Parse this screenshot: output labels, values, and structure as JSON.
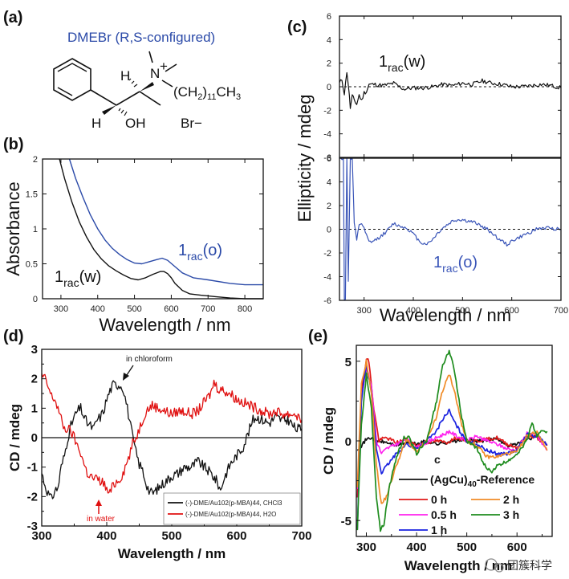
{
  "figure": {
    "panel_labels": [
      "(a)",
      "(b)",
      "(c)",
      "(d)",
      "(e)"
    ],
    "watermark": "团簇科学"
  },
  "structure": {
    "title": "DMEBr (R,S-configured)",
    "title_color": "#2b4aa8",
    "labels": {
      "h_top": "H",
      "n_plus": "N",
      "plus": "+",
      "chain": "(CH2)11CH3",
      "h_bottom": "H",
      "oh": "OH",
      "br": "Br−"
    }
  },
  "chart_data": [
    {
      "panel": "b",
      "type": "line",
      "title": "",
      "xlabel": "Wavelength  /  nm",
      "ylabel": "Absorbance",
      "xlim": [
        250,
        850
      ],
      "ylim": [
        0,
        2
      ],
      "xticks": [
        300,
        400,
        500,
        600,
        700,
        800
      ],
      "yticks": [
        0,
        0.5,
        1,
        1.5,
        2
      ],
      "ytick_labels": [
        "0",
        "0.5",
        "1",
        "1.5",
        "2"
      ],
      "grid": false,
      "series": [
        {
          "name": "1rac(w)",
          "color": "#111111",
          "x": [
            296,
            310,
            330,
            350,
            370,
            390,
            410,
            430,
            450,
            470,
            490,
            510,
            530,
            550,
            570,
            580,
            590,
            600,
            610,
            630,
            650,
            680,
            720,
            760,
            800,
            850
          ],
          "y": [
            2.0,
            1.72,
            1.38,
            1.1,
            0.88,
            0.7,
            0.57,
            0.47,
            0.4,
            0.34,
            0.29,
            0.27,
            0.3,
            0.35,
            0.39,
            0.39,
            0.36,
            0.3,
            0.22,
            0.12,
            0.07,
            0.05,
            0.03,
            0.01,
            0.0,
            0.0
          ]
        },
        {
          "name": "1rac(o)",
          "color": "#2b4aa8",
          "x": [
            323,
            340,
            360,
            380,
            400,
            420,
            440,
            460,
            480,
            500,
            520,
            540,
            560,
            575,
            590,
            610,
            630,
            660,
            700,
            760,
            800,
            850
          ],
          "y": [
            2.0,
            1.72,
            1.45,
            1.2,
            1.0,
            0.84,
            0.72,
            0.63,
            0.56,
            0.51,
            0.5,
            0.53,
            0.56,
            0.58,
            0.55,
            0.46,
            0.37,
            0.3,
            0.27,
            0.22,
            0.2,
            0.2
          ]
        }
      ],
      "annotations": [
        {
          "text_main": "1",
          "text_sub": "rac",
          "text_tail": "(w)",
          "color": "#111111"
        },
        {
          "text_main": "1",
          "text_sub": "rac",
          "text_tail": "(o)",
          "color": "#2b4aa8"
        }
      ]
    },
    {
      "panel": "c",
      "type": "line",
      "xlabel": "Wavelength  /  nm",
      "ylabel": "Ellipticity  /  mdeg",
      "xlim": [
        250,
        700
      ],
      "ylim": [
        -6,
        6
      ],
      "xticks": [
        300,
        400,
        500,
        600,
        700
      ],
      "yticks": [
        -6,
        -4,
        -2,
        0,
        2,
        4,
        6
      ],
      "grid": false,
      "subplots": [
        {
          "name": "top",
          "series": [
            {
              "name": "1rac(w)",
              "color": "#111111",
              "x": [
                250,
                255,
                260,
                265,
                268,
                272,
                276,
                280,
                285,
                290,
                295,
                300,
                305,
                310,
                320,
                340,
                360,
                380,
                400,
                420,
                440,
                460,
                480,
                500,
                520,
                540,
                560,
                580,
                600,
                620,
                640,
                660,
                680,
                700
              ],
              "y": [
                0.3,
                0.6,
                -0.6,
                1.3,
                0.2,
                -1.8,
                -0.8,
                -1.1,
                -1.5,
                -0.7,
                -1.2,
                -0.5,
                -0.4,
                0.2,
                0.2,
                0.1,
                0.3,
                -0.2,
                -0.1,
                -0.1,
                0.0,
                0.2,
                0.1,
                0.3,
                0.2,
                0.5,
                0.3,
                0.2,
                0.0,
                0.0,
                0.1,
                0.2,
                0.1,
                -0.1
              ]
            }
          ],
          "annotation": {
            "text_main": "1",
            "text_sub": "rac",
            "text_tail": "(w)",
            "color": "#111111"
          }
        },
        {
          "name": "bottom",
          "series": [
            {
              "name": "1rac(o)",
              "color": "#3a55b8",
              "x": [
                250,
                258,
                260,
                262,
                265,
                268,
                272,
                276,
                280,
                285,
                290,
                295,
                300,
                310,
                320,
                330,
                340,
                350,
                360,
                370,
                380,
                390,
                400,
                410,
                420,
                430,
                440,
                450,
                460,
                470,
                480,
                490,
                500,
                510,
                520,
                530,
                540,
                550,
                560,
                570,
                580,
                590,
                600,
                610,
                620,
                630,
                640,
                650,
                660,
                680,
                700
              ],
              "y": [
                6,
                6,
                -6,
                -6,
                6,
                -4.3,
                6,
                6,
                0.5,
                -1.0,
                0.4,
                0.5,
                0.0,
                -1.1,
                -1.0,
                -0.7,
                -0.4,
                0.0,
                0.5,
                0.3,
                0.2,
                0.0,
                -0.4,
                -0.9,
                -1.2,
                -1.2,
                -0.8,
                -0.3,
                0.1,
                0.4,
                0.7,
                0.8,
                0.8,
                0.7,
                0.6,
                0.5,
                0.2,
                0.0,
                -0.3,
                -0.7,
                -1.0,
                -1.3,
                -1.0,
                -0.8,
                -0.6,
                -0.4,
                -0.2,
                0.0,
                0.1,
                0.1,
                0.0
              ]
            }
          ],
          "annotation": {
            "text_main": "1",
            "text_sub": "rac",
            "text_tail": "(o)",
            "color": "#3a55b8"
          }
        }
      ]
    },
    {
      "panel": "d",
      "type": "line",
      "xlabel": "Wavelength / nm",
      "ylabel": "CD / mdeg",
      "xlim": [
        300,
        700
      ],
      "ylim": [
        -3,
        3
      ],
      "xticks": [
        300,
        400,
        500,
        600,
        700
      ],
      "yticks": [
        -3,
        -2,
        -1,
        0,
        1,
        2,
        3
      ],
      "grid": false,
      "legend_position": "bottom-right",
      "series": [
        {
          "name": "(-)-DME/Au102(p-MBA)44, CHCl3",
          "color": "#111111",
          "x": [
            300,
            305,
            310,
            315,
            320,
            325,
            330,
            335,
            340,
            345,
            350,
            355,
            360,
            365,
            370,
            375,
            380,
            385,
            390,
            395,
            400,
            405,
            410,
            415,
            420,
            425,
            430,
            435,
            440,
            445,
            450,
            455,
            460,
            465,
            470,
            480,
            490,
            500,
            510,
            520,
            530,
            540,
            550,
            560,
            570,
            575,
            580,
            590,
            600,
            610,
            615,
            620,
            625,
            630,
            640,
            650,
            660,
            670,
            680,
            690,
            700
          ],
          "y": [
            -1.2,
            -1.6,
            -1.9,
            -2.1,
            -1.8,
            -1.7,
            -1.0,
            -0.6,
            0.0,
            0.4,
            0.7,
            0.9,
            1.0,
            0.7,
            0.5,
            0.4,
            0.3,
            0.6,
            0.7,
            0.9,
            1.3,
            1.6,
            1.8,
            1.8,
            1.8,
            1.7,
            1.2,
            0.6,
            0.0,
            -0.5,
            -0.9,
            -1.1,
            -1.5,
            -1.8,
            -1.9,
            -1.7,
            -1.5,
            -1.3,
            -1.2,
            -1.0,
            -1.0,
            -0.8,
            -1.0,
            -1.2,
            -1.5,
            -1.8,
            -1.4,
            -0.9,
            -0.6,
            -0.3,
            0.0,
            0.3,
            0.6,
            0.7,
            0.6,
            0.5,
            0.7,
            0.6,
            0.6,
            0.3,
            0.3
          ]
        },
        {
          "name": "(-)-DME/Au102(p-MBA)44, H2O",
          "color": "#e01010",
          "x": [
            300,
            305,
            310,
            315,
            320,
            325,
            330,
            335,
            340,
            345,
            350,
            355,
            360,
            365,
            370,
            375,
            380,
            385,
            390,
            395,
            400,
            405,
            410,
            415,
            420,
            425,
            430,
            435,
            440,
            445,
            450,
            455,
            460,
            470,
            480,
            490,
            500,
            510,
            520,
            530,
            540,
            550,
            560,
            565,
            570,
            580,
            590,
            600,
            610,
            620,
            630,
            640,
            650,
            660,
            670,
            680,
            690,
            700
          ],
          "y": [
            2.1,
            2.0,
            1.7,
            1.4,
            1.3,
            1.0,
            0.6,
            0.3,
            0.3,
            0.2,
            0.0,
            -0.3,
            -0.5,
            -0.9,
            -1.2,
            -1.3,
            -1.4,
            -1.4,
            -1.5,
            -1.5,
            -1.8,
            -1.9,
            -1.6,
            -1.5,
            -1.4,
            -1.2,
            -0.9,
            -0.6,
            -0.2,
            0.0,
            0.3,
            0.6,
            0.9,
            1.1,
            1.0,
            0.9,
            0.8,
            0.9,
            0.9,
            0.8,
            0.9,
            1.2,
            1.5,
            1.9,
            1.7,
            1.6,
            1.5,
            1.3,
            1.2,
            1.1,
            1.0,
            0.9,
            0.8,
            0.9,
            0.8,
            0.8,
            0.8,
            0.6
          ]
        }
      ],
      "annotations": [
        {
          "text": "in chloroform",
          "color": "#111111"
        },
        {
          "text": "in water",
          "color": "#e01010"
        }
      ]
    },
    {
      "panel": "e",
      "type": "line",
      "xlabel": "Wavelength / nm",
      "ylabel": "CD / mdeg",
      "xlim": [
        280,
        670
      ],
      "ylim": [
        -6,
        6
      ],
      "xticks": [
        300,
        400,
        500,
        600
      ],
      "xtick_labels": [
        "300",
        "400",
        "500",
        "600"
      ],
      "yticks": [
        -5,
        0,
        5
      ],
      "grid": false,
      "legend_position": "bottom-center",
      "legend_title": "c",
      "series": [
        {
          "name": "(AgCu)40-Reference",
          "color": "#111111",
          "x": [
            282,
            290,
            300,
            310,
            320,
            340,
            360,
            380,
            400,
            420,
            440,
            460,
            480,
            500,
            520,
            540,
            560,
            580,
            600,
            620,
            640,
            660
          ],
          "y": [
            -0.5,
            -0.3,
            0.1,
            0.2,
            0.0,
            -0.1,
            -0.3,
            -0.1,
            -0.2,
            0.0,
            -0.2,
            -0.1,
            0.0,
            0.1,
            0.0,
            0.0,
            0.2,
            -0.3,
            -0.2,
            0.1,
            0.3,
            -0.2
          ]
        },
        {
          "name": "0 h",
          "color": "#e01818",
          "x": [
            282,
            290,
            300,
            305,
            315,
            325,
            330,
            340,
            360,
            380,
            400,
            420,
            440,
            460,
            480,
            500,
            520,
            540,
            560,
            580,
            600,
            620,
            640,
            660
          ],
          "y": [
            -3.5,
            3.0,
            5.2,
            5.0,
            2.0,
            0.0,
            0.1,
            0.2,
            -0.1,
            0.1,
            -0.3,
            -0.1,
            0.0,
            -0.1,
            0.2,
            0.0,
            0.0,
            0.1,
            0.2,
            -0.2,
            -0.4,
            0.3,
            0.2,
            -0.3
          ]
        },
        {
          "name": "0.5 h",
          "color": "#ff22ee",
          "x": [
            282,
            290,
            300,
            310,
            320,
            330,
            340,
            360,
            380,
            400,
            420,
            440,
            460,
            465,
            480,
            500,
            520,
            540,
            560,
            580,
            600,
            620,
            640,
            660
          ],
          "y": [
            -3.0,
            2.8,
            4.6,
            3.5,
            0.0,
            -0.8,
            -0.5,
            -0.2,
            0.1,
            -0.4,
            -0.1,
            0.2,
            0.5,
            0.6,
            0.3,
            0.0,
            0.3,
            0.0,
            -0.2,
            -0.5,
            -0.6,
            0.5,
            0.3,
            -0.6
          ]
        },
        {
          "name": "1 h",
          "color": "#1a22e0",
          "x": [
            282,
            290,
            300,
            310,
            320,
            330,
            340,
            350,
            360,
            380,
            400,
            420,
            440,
            450,
            460,
            465,
            475,
            490,
            500,
            520,
            540,
            560,
            580,
            600,
            620,
            640,
            660
          ],
          "y": [
            -5.6,
            2.5,
            4.8,
            3.0,
            -0.5,
            -2.0,
            -1.6,
            -1.2,
            -0.8,
            -0.2,
            -0.5,
            0.0,
            0.6,
            1.3,
            1.7,
            1.9,
            1.2,
            0.4,
            0.0,
            -0.2,
            -0.6,
            -0.8,
            -0.8,
            -0.6,
            0.4,
            0.3,
            -0.2
          ]
        },
        {
          "name": "2 h",
          "color": "#f08c28",
          "x": [
            282,
            290,
            300,
            310,
            320,
            330,
            340,
            350,
            360,
            380,
            400,
            420,
            440,
            450,
            460,
            465,
            475,
            490,
            500,
            520,
            540,
            560,
            580,
            600,
            620,
            640,
            660
          ],
          "y": [
            -3.0,
            3.5,
            5.0,
            3.0,
            -1.5,
            -4.0,
            -3.5,
            -2.5,
            -1.5,
            0.1,
            -0.7,
            0.0,
            1.5,
            3.0,
            3.8,
            4.2,
            3.2,
            1.0,
            0.0,
            -0.3,
            -1.0,
            -1.0,
            -0.8,
            -0.7,
            0.3,
            0.6,
            -0.6
          ]
        },
        {
          "name": "3 h",
          "color": "#1e8c1e",
          "x": [
            282,
            290,
            300,
            310,
            320,
            328,
            335,
            345,
            360,
            375,
            385,
            400,
            420,
            440,
            450,
            460,
            465,
            475,
            490,
            500,
            520,
            540,
            550,
            560,
            580,
            600,
            620,
            630,
            640,
            650,
            660
          ],
          "y": [
            -5.5,
            1.0,
            4.2,
            2.0,
            -3.5,
            -5.6,
            -5.2,
            -3.0,
            -1.0,
            0.2,
            0.2,
            -0.8,
            0.0,
            2.5,
            4.5,
            5.4,
            5.6,
            4.5,
            1.5,
            0.0,
            -0.5,
            -1.8,
            -1.9,
            -1.6,
            -1.3,
            -0.8,
            0.0,
            1.2,
            0.2,
            0.7,
            0.6
          ]
        }
      ]
    }
  ]
}
